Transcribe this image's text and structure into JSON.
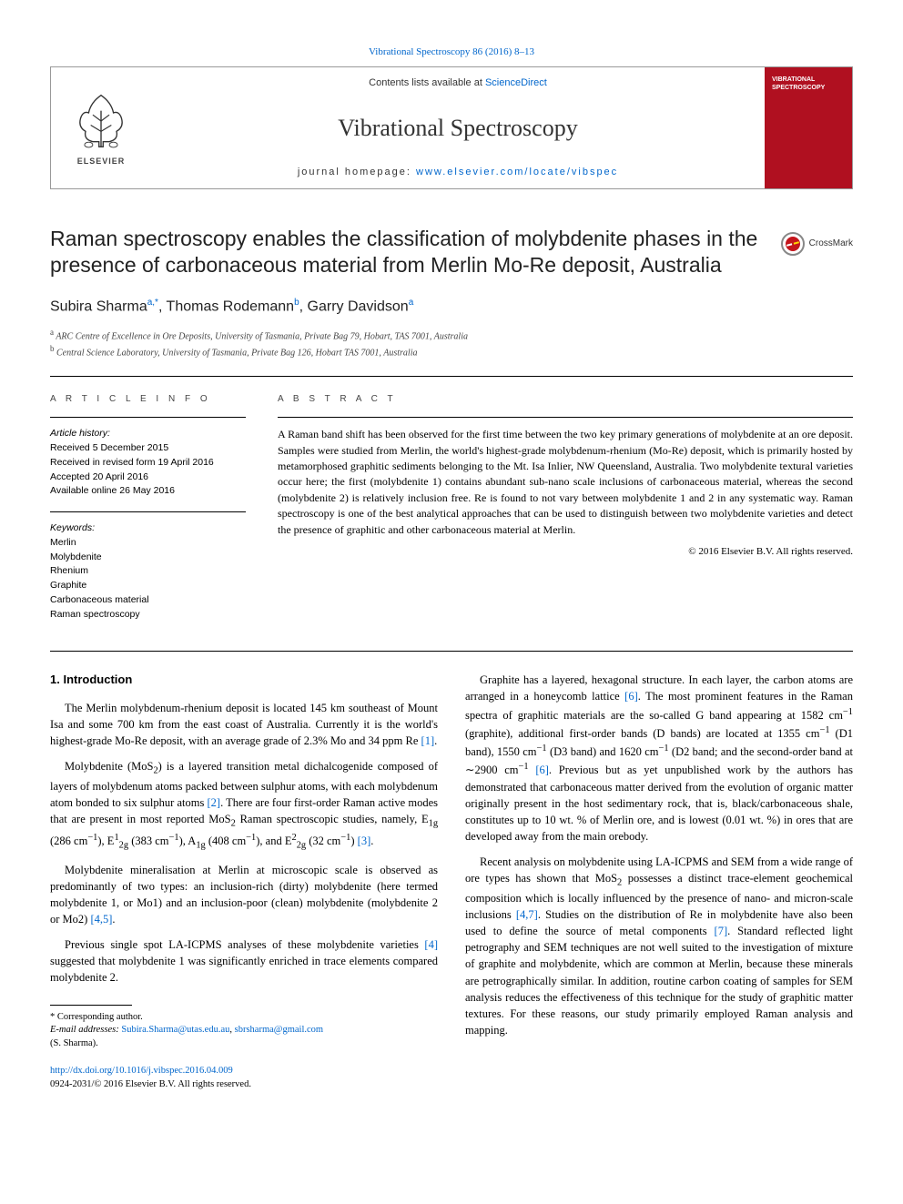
{
  "top_citation": "Vibrational Spectroscopy 86 (2016) 8–13",
  "header": {
    "contents_prefix": "Contents lists available at ",
    "contents_link": "ScienceDirect",
    "journal_name": "Vibrational Spectroscopy",
    "homepage_prefix": "journal homepage: ",
    "homepage_url": "www.elsevier.com/locate/vibspec",
    "publisher_name": "ELSEVIER",
    "cover_title": "VIBRATIONAL SPECTROSCOPY",
    "cover_bg": "#b01020"
  },
  "crossmark_label": "CrossMark",
  "title": "Raman spectroscopy enables the classification of molybdenite phases in the presence of carbonaceous material from Merlin Mo-Re deposit, Australia",
  "authors_html": "Subira Sharma<sup>a,*</sup>, Thomas Rodemann<sup>b</sup>, Garry Davidson<sup>a</sup>",
  "affiliations": {
    "a": "ARC Centre of Excellence in Ore Deposits, University of Tasmania, Private Bag 79, Hobart, TAS 7001, Australia",
    "b": "Central Science Laboratory, University of Tasmania, Private Bag 126, Hobart TAS 7001, Australia"
  },
  "article_info": {
    "heading": "A R T I C L E  I N F O",
    "history_label": "Article history:",
    "received": "Received 5 December 2015",
    "revised": "Received in revised form 19 April 2016",
    "accepted": "Accepted 20 April 2016",
    "online": "Available online 26 May 2016",
    "keywords_label": "Keywords:",
    "keywords": [
      "Merlin",
      "Molybdenite",
      "Rhenium",
      "Graphite",
      "Carbonaceous material",
      "Raman spectroscopy"
    ]
  },
  "abstract": {
    "heading": "A B S T R A C T",
    "text": "A Raman band shift has been observed for the first time between the two key primary generations of molybdenite at an ore deposit. Samples were studied from Merlin, the world's highest-grade molybdenum-rhenium (Mo-Re) deposit, which is primarily hosted by metamorphosed graphitic sediments belonging to the Mt. Isa Inlier, NW Queensland, Australia. Two molybdenite textural varieties occur here; the first (molybdenite 1) contains abundant sub-nano scale inclusions of carbonaceous material, whereas the second (molybdenite 2) is relatively inclusion free. Re is found to not vary between molybdenite 1 and 2 in any systematic way. Raman spectroscopy is one of the best analytical approaches that can be used to distinguish between two molybdenite varieties and detect the presence of graphitic and other carbonaceous material at Merlin.",
    "copyright": "© 2016 Elsevier B.V. All rights reserved."
  },
  "body": {
    "section1_heading": "1. Introduction",
    "left": {
      "p1": "The Merlin molybdenum-rhenium deposit is located 145 km southeast of Mount Isa and some 700 km from the east coast of Australia. Currently it is the world's highest-grade Mo-Re deposit, with an average grade of 2.3% Mo and 34 ppm Re ",
      "p1_ref": "[1]",
      "p1_end": ".",
      "p2a": "Molybdenite (MoS",
      "p2b": ") is a layered transition metal dichalcogenide composed of layers of molybdenum atoms packed between sulphur atoms, with each molybdenum atom bonded to six sulphur atoms ",
      "p2_ref1": "[2]",
      "p2c": ". There are four first-order Raman active modes that are present in most reported MoS",
      "p2d": " Raman spectroscopic studies, namely, E",
      "p2e": " (286 cm",
      "p2f": "), E",
      "p2g": " (383 cm",
      "p2h": "), A",
      "p2i": " (408 cm",
      "p2j": "), and E",
      "p2k": " (32 cm",
      "p2l": ") ",
      "p2_ref2": "[3]",
      "p2m": ".",
      "p3": "Molybdenite mineralisation at Merlin at microscopic scale is observed as predominantly of two types: an inclusion-rich (dirty) molybdenite (here termed molybdenite 1, or Mo1) and an inclusion-poor (clean) molybdenite (molybdenite 2 or Mo2) ",
      "p3_ref": "[4,5]",
      "p3_end": ".",
      "p4": "Previous single spot LA-ICPMS analyses of these molybdenite varieties ",
      "p4_ref": "[4]",
      "p4_end": " suggested that molybdenite 1 was significantly enriched in trace elements compared molybdenite 2."
    },
    "right": {
      "p1a": "Graphite has a layered, hexagonal structure. In each layer, the carbon atoms are arranged in a honeycomb lattice ",
      "p1_ref1": "[6]",
      "p1b": ". The most prominent features in the Raman spectra of graphitic materials are the so-called G band appearing at 1582 cm",
      "p1c": " (graphite), additional first-order bands (D bands) are located at 1355 cm",
      "p1d": " (D1 band), 1550 cm",
      "p1e": " (D3 band) and 1620 cm",
      "p1f": " (D2 band; and the second-order band at ∼2900 cm",
      "p1g": " ",
      "p1_ref2": "[6]",
      "p1h": ". Previous but as yet unpublished work by the authors has demonstrated that carbonaceous matter derived from the evolution of organic matter originally present in the host sedimentary rock, that is, black/carbonaceous shale, constitutes up to 10 wt. % of Merlin ore, and is lowest (0.01 wt. %) in ores that are developed away from the main orebody.",
      "p2a": "Recent analysis on molybdenite using LA-ICPMS and SEM from a wide range of ore types has shown that MoS",
      "p2b": " possesses a distinct trace-element geochemical composition which is locally influenced by the presence of nano- and micron-scale inclusions ",
      "p2_ref1": "[4,7]",
      "p2c": ". Studies on the distribution of Re in molybdenite have also been used to define the source of metal components ",
      "p2_ref2": "[7]",
      "p2d": ". Standard reflected light petrography and SEM techniques are not well suited to the investigation of mixture of graphite and molybdenite, which are common at Merlin, because these minerals are petrographically similar. In addition, routine carbon coating of samples for SEM analysis reduces the effectiveness of this technique for the study of graphitic matter textures. For these reasons, our study primarily employed Raman analysis and mapping."
    }
  },
  "footnote": {
    "corr_label": "* Corresponding author.",
    "email_label": "E-mail addresses: ",
    "email1": "Subira.Sharma@utas.edu.au",
    "email2": "sbrsharma@gmail.com",
    "name": "(S. Sharma)."
  },
  "doi": {
    "url": "http://dx.doi.org/10.1016/j.vibspec.2016.04.009",
    "issn_copyright": "0924-2031/© 2016 Elsevier B.V. All rights reserved."
  },
  "colors": {
    "link": "#0066cc",
    "text": "#000000",
    "heading": "#222222",
    "elsevier_orange": "#ff6600"
  }
}
